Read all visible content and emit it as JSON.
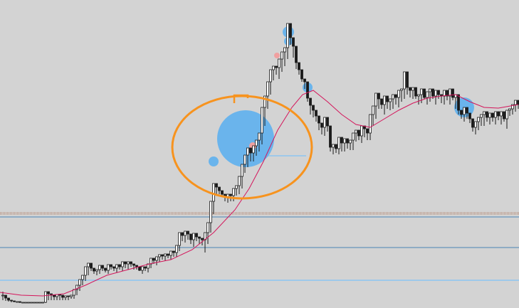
{
  "chart_data": {
    "type": "candlestick",
    "title": "",
    "xlabel": "",
    "ylabel": "",
    "grid": false,
    "legend": "none",
    "colors": {
      "background": "#d3d3d3",
      "candle": "#1a1a1a",
      "ma": "#d4145a",
      "bubble": "#6ab4ec",
      "bubble_small_red": "#f0a0a0",
      "annotation": "#f7931e",
      "line_blue": "#4b86b4",
      "line_light_blue": "#9ec9ea",
      "line_dotted": "#a0522d"
    },
    "candles": [
      [
        4,
        13,
        1,
        8
      ],
      [
        8,
        8,
        0,
        4
      ],
      [
        12,
        4,
        -1,
        1
      ],
      [
        16,
        1,
        -2,
        0
      ],
      [
        20,
        0,
        -2,
        -1
      ],
      [
        24,
        -1,
        -2,
        -1
      ],
      [
        28,
        -1,
        -3,
        -2
      ],
      [
        32,
        -2,
        -3,
        -2
      ],
      [
        36,
        -2,
        -3,
        -2
      ],
      [
        40,
        -2,
        -3,
        -2
      ],
      [
        44,
        -2,
        -3,
        -2
      ],
      [
        48,
        -2,
        -3,
        -2
      ],
      [
        52,
        -2,
        -3,
        -2
      ],
      [
        56,
        -2,
        -3,
        -2
      ],
      [
        60,
        -2,
        -3,
        -2
      ],
      [
        64,
        -2,
        -3,
        13
      ],
      [
        68,
        13,
        1,
        10
      ],
      [
        72,
        10,
        1,
        8
      ],
      [
        76,
        8,
        1,
        6
      ],
      [
        80,
        6,
        1,
        9
      ],
      [
        84,
        9,
        1,
        8
      ],
      [
        88,
        8,
        1,
        5
      ],
      [
        92,
        5,
        1,
        7
      ],
      [
        96,
        7,
        1,
        6
      ],
      [
        100,
        6,
        3,
        8
      ],
      [
        104,
        8,
        3,
        16
      ],
      [
        108,
        16,
        8,
        22
      ],
      [
        112,
        22,
        14,
        30
      ],
      [
        116,
        30,
        22,
        36
      ],
      [
        120,
        36,
        28,
        48
      ],
      [
        124,
        48,
        36,
        53
      ],
      [
        128,
        53,
        42,
        46
      ],
      [
        132,
        46,
        38,
        42
      ],
      [
        136,
        42,
        36,
        44
      ],
      [
        140,
        44,
        38,
        50
      ],
      [
        144,
        50,
        42,
        46
      ],
      [
        148,
        46,
        40,
        43
      ],
      [
        152,
        43,
        38,
        51
      ],
      [
        156,
        51,
        44,
        48
      ],
      [
        160,
        48,
        42,
        46
      ],
      [
        164,
        46,
        40,
        51
      ],
      [
        168,
        51,
        44,
        48
      ],
      [
        172,
        48,
        42,
        55
      ],
      [
        176,
        55,
        46,
        52
      ],
      [
        180,
        52,
        44,
        55
      ],
      [
        184,
        55,
        48,
        52
      ],
      [
        188,
        52,
        44,
        50
      ],
      [
        192,
        50,
        44,
        48
      ],
      [
        196,
        48,
        42,
        43
      ],
      [
        200,
        43,
        38,
        48
      ],
      [
        204,
        48,
        42,
        46
      ],
      [
        208,
        46,
        40,
        52
      ],
      [
        212,
        52,
        46,
        60
      ],
      [
        216,
        60,
        52,
        57
      ],
      [
        220,
        57,
        50,
        62
      ],
      [
        224,
        62,
        55,
        65
      ],
      [
        228,
        65,
        58,
        63
      ],
      [
        232,
        63,
        56,
        66
      ],
      [
        236,
        66,
        60,
        64
      ],
      [
        240,
        64,
        58,
        70
      ],
      [
        244,
        70,
        62,
        68
      ],
      [
        248,
        68,
        62,
        78
      ],
      [
        252,
        78,
        70,
        96
      ],
      [
        256,
        96,
        84,
        92
      ],
      [
        260,
        92,
        82,
        98
      ],
      [
        264,
        98,
        86,
        94
      ],
      [
        268,
        94,
        80,
        86
      ],
      [
        272,
        86,
        76,
        95
      ],
      [
        276,
        95,
        84,
        90
      ],
      [
        280,
        90,
        80,
        88
      ],
      [
        284,
        88,
        78,
        86
      ],
      [
        288,
        86,
        68,
        96
      ],
      [
        292,
        96,
        80,
        110
      ],
      [
        296,
        110,
        96,
        140
      ],
      [
        300,
        140,
        122,
        165
      ],
      [
        304,
        165,
        150,
        160
      ],
      [
        308,
        160,
        150,
        155
      ],
      [
        312,
        155,
        146,
        150
      ],
      [
        316,
        150,
        140,
        146
      ],
      [
        320,
        146,
        138,
        150
      ],
      [
        324,
        150,
        140,
        148
      ],
      [
        328,
        148,
        140,
        158
      ],
      [
        332,
        158,
        148,
        162
      ],
      [
        336,
        162,
        150,
        175
      ],
      [
        340,
        175,
        158,
        192
      ],
      [
        344,
        192,
        180,
        205
      ],
      [
        348,
        205,
        188,
        215
      ],
      [
        352,
        215,
        196,
        208
      ],
      [
        356,
        208,
        196,
        218
      ],
      [
        360,
        218,
        204,
        226
      ],
      [
        364,
        226,
        210,
        236
      ],
      [
        368,
        236,
        220,
        272
      ],
      [
        372,
        272,
        246,
        288
      ],
      [
        376,
        288,
        270,
        308
      ],
      [
        380,
        308,
        290,
        325
      ],
      [
        384,
        325,
        310,
        330
      ],
      [
        388,
        330,
        318,
        328
      ],
      [
        392,
        328,
        312,
        340
      ],
      [
        396,
        340,
        322,
        350
      ],
      [
        400,
        350,
        330,
        356
      ],
      [
        404,
        356,
        340,
        390
      ],
      [
        408,
        390,
        360,
        370
      ],
      [
        412,
        370,
        342,
        358
      ],
      [
        416,
        358,
        326,
        335
      ],
      [
        420,
        335,
        318,
        325
      ],
      [
        424,
        325,
        308,
        312
      ],
      [
        428,
        312,
        298,
        308
      ],
      [
        432,
        308,
        280,
        285
      ],
      [
        436,
        285,
        262,
        275
      ],
      [
        440,
        275,
        258,
        268
      ],
      [
        444,
        268,
        252,
        260
      ],
      [
        448,
        260,
        240,
        250
      ],
      [
        452,
        250,
        234,
        244
      ],
      [
        456,
        244,
        232,
        258
      ],
      [
        460,
        258,
        238,
        246
      ],
      [
        464,
        246,
        210,
        216
      ],
      [
        468,
        216,
        206,
        220
      ],
      [
        472,
        220,
        208,
        214
      ],
      [
        476,
        214,
        206,
        230
      ],
      [
        480,
        230,
        210,
        222
      ],
      [
        484,
        222,
        210,
        228
      ],
      [
        488,
        228,
        214,
        222
      ],
      [
        492,
        222,
        212,
        226
      ],
      [
        496,
        226,
        212,
        236
      ],
      [
        500,
        236,
        224,
        240
      ],
      [
        504,
        240,
        226,
        232
      ],
      [
        508,
        232,
        222,
        246
      ],
      [
        512,
        246,
        230,
        242
      ],
      [
        516,
        242,
        226,
        236
      ],
      [
        520,
        236,
        226,
        262
      ],
      [
        524,
        262,
        246,
        274
      ],
      [
        528,
        274,
        256,
        292
      ],
      [
        532,
        292,
        270,
        284
      ],
      [
        536,
        284,
        270,
        276
      ],
      [
        540,
        276,
        262,
        288
      ],
      [
        544,
        288,
        270,
        280
      ],
      [
        548,
        280,
        268,
        284
      ],
      [
        552,
        284,
        270,
        290
      ],
      [
        556,
        290,
        276,
        286
      ],
      [
        560,
        286,
        272,
        296
      ],
      [
        564,
        296,
        280,
        298
      ],
      [
        568,
        298,
        284,
        322
      ],
      [
        572,
        322,
        290,
        300
      ],
      [
        576,
        300,
        286,
        296
      ],
      [
        580,
        296,
        284,
        300
      ],
      [
        584,
        300,
        284,
        288
      ],
      [
        588,
        288,
        276,
        290
      ],
      [
        592,
        290,
        278,
        298
      ],
      [
        596,
        298,
        284,
        286
      ],
      [
        600,
        286,
        276,
        294
      ],
      [
        604,
        294,
        280,
        298
      ],
      [
        608,
        298,
        284,
        288
      ],
      [
        612,
        288,
        276,
        296
      ],
      [
        616,
        296,
        284,
        290
      ],
      [
        620,
        290,
        278,
        288
      ],
      [
        624,
        288,
        276,
        296
      ],
      [
        628,
        296,
        282,
        288
      ],
      [
        632,
        288,
        276,
        298
      ],
      [
        636,
        298,
        282,
        286
      ],
      [
        640,
        286,
        270,
        290
      ],
      [
        644,
        290,
        262,
        268
      ],
      [
        648,
        268,
        256,
        262
      ],
      [
        652,
        262,
        252,
        272
      ],
      [
        656,
        272,
        256,
        264
      ],
      [
        660,
        264,
        250,
        256
      ],
      [
        664,
        256,
        238,
        244
      ],
      [
        668,
        244,
        234,
        252
      ],
      [
        672,
        252,
        240,
        258
      ],
      [
        676,
        258,
        246,
        262
      ],
      [
        680,
        262,
        246,
        266
      ],
      [
        684,
        266,
        252,
        258
      ],
      [
        688,
        258,
        248,
        264
      ],
      [
        692,
        264,
        252,
        258
      ],
      [
        696,
        258,
        248,
        266
      ],
      [
        700,
        266,
        254,
        260
      ],
      [
        704,
        260,
        248,
        266
      ],
      [
        708,
        266,
        252,
        256
      ],
      [
        712,
        256,
        242,
        268
      ],
      [
        716,
        268,
        260,
        270
      ],
      [
        720,
        270,
        262,
        276
      ],
      [
        724,
        276,
        266,
        282
      ],
      [
        728,
        282,
        270,
        276
      ]
    ],
    "moving_average": [
      [
        0,
        12
      ],
      [
        30,
        8
      ],
      [
        60,
        7
      ],
      [
        90,
        10
      ],
      [
        120,
        22
      ],
      [
        150,
        36
      ],
      [
        180,
        44
      ],
      [
        210,
        52
      ],
      [
        240,
        58
      ],
      [
        270,
        72
      ],
      [
        300,
        96
      ],
      [
        330,
        128
      ],
      [
        350,
        158
      ],
      [
        370,
        196
      ],
      [
        390,
        240
      ],
      [
        410,
        272
      ],
      [
        425,
        290
      ],
      [
        440,
        296
      ],
      [
        460,
        280
      ],
      [
        480,
        262
      ],
      [
        500,
        248
      ],
      [
        520,
        244
      ],
      [
        540,
        256
      ],
      [
        560,
        268
      ],
      [
        580,
        278
      ],
      [
        600,
        285
      ],
      [
        620,
        288
      ],
      [
        640,
        290
      ],
      [
        660,
        280
      ],
      [
        680,
        272
      ],
      [
        700,
        271
      ],
      [
        728,
        276
      ]
    ],
    "bubbles": [
      {
        "x": 345,
        "y": 228,
        "r": 40,
        "kind": "blue"
      },
      {
        "x": 300,
        "y": 196,
        "r": 7,
        "kind": "blue"
      },
      {
        "x": 405,
        "y": 378,
        "r": 8,
        "kind": "blue"
      },
      {
        "x": 405,
        "y": 365,
        "r": 6,
        "kind": "blue"
      },
      {
        "x": 432,
        "y": 300,
        "r": 7,
        "kind": "blue"
      },
      {
        "x": 652,
        "y": 272,
        "r": 14,
        "kind": "blue"
      },
      {
        "x": 355,
        "y": 218,
        "r": 5,
        "kind": "red"
      },
      {
        "x": 389,
        "y": 345,
        "r": 4,
        "kind": "red"
      }
    ],
    "horizontal_lines": [
      {
        "y": 214,
        "kind": "light_blue",
        "from": 355,
        "to": 430
      },
      {
        "y": 128,
        "kind": "blue",
        "from": 0,
        "to": 729
      },
      {
        "y": 85,
        "kind": "blue",
        "from": 0,
        "to": 729
      },
      {
        "y": 39,
        "kind": "light_blue",
        "from": 0,
        "to": 729
      },
      {
        "y": 132,
        "kind": "dotted",
        "from": 0,
        "to": 729
      },
      {
        "y": 134,
        "kind": "dotted",
        "from": 0,
        "to": 729
      }
    ],
    "ylim": [
      0,
      433
    ]
  }
}
